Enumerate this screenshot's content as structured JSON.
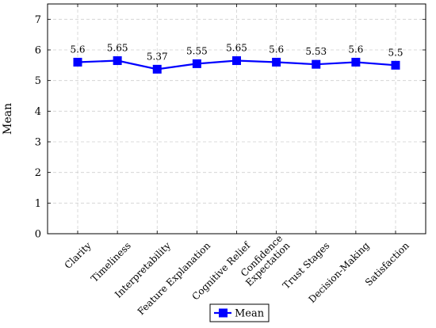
{
  "chart_data": {
    "type": "line",
    "categories": [
      "Clarity",
      "Timeliness",
      "Interpretability",
      "Feature Explanation",
      "Cognitive Relief",
      "Confidence Expectation",
      "Trust Stages",
      "Decision-Making",
      "Satisfaction"
    ],
    "category_lines": [
      [
        "Clarity"
      ],
      [
        "Timeliness"
      ],
      [
        "Interpretability"
      ],
      [
        "Feature Explanation"
      ],
      [
        "Cognitive Relief"
      ],
      [
        "Confidence",
        "Expectation"
      ],
      [
        "Trust Stages"
      ],
      [
        "Decision-Making"
      ],
      [
        "Satisfaction"
      ]
    ],
    "series": [
      {
        "name": "Mean",
        "values": [
          5.6,
          5.65,
          5.37,
          5.55,
          5.65,
          5.6,
          5.53,
          5.6,
          5.5
        ],
        "labels": [
          "5.6",
          "5.65",
          "5.37",
          "5.55",
          "5.65",
          "5.6",
          "5.53",
          "5.6",
          "5.5"
        ],
        "color": "#0000ff"
      }
    ],
    "title": "",
    "xlabel": "",
    "ylabel": "Mean",
    "ylim": [
      0,
      7.5
    ],
    "yticks": [
      0,
      1,
      2,
      3,
      4,
      5,
      6,
      7
    ],
    "grid": true,
    "legend": "bottom-center"
  }
}
